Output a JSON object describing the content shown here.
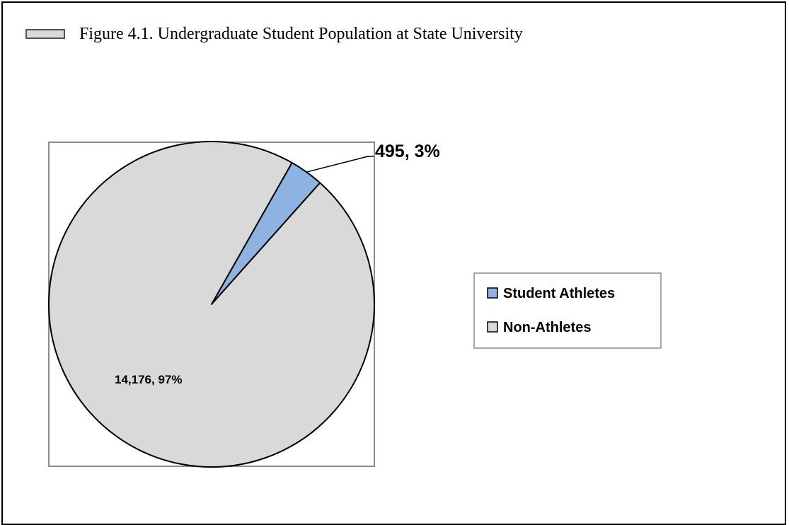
{
  "figure": {
    "title": "Figure 4.1. Undergraduate Student Population at State University"
  },
  "chart_data": {
    "type": "pie",
    "title": "Figure 4.1. Undergraduate Student Population at State University",
    "slices": [
      {
        "name": "Student Athletes",
        "value": 495,
        "percent": 3,
        "label": "495, 3%",
        "color": "#8db3e2"
      },
      {
        "name": "Non-Athletes",
        "value": 14176,
        "percent": 97,
        "label": "14,176, 97%",
        "color": "#d9d9d9"
      }
    ],
    "legend": {
      "placement": "right",
      "entries": [
        "Student Athletes",
        "Non-Athletes"
      ]
    }
  }
}
